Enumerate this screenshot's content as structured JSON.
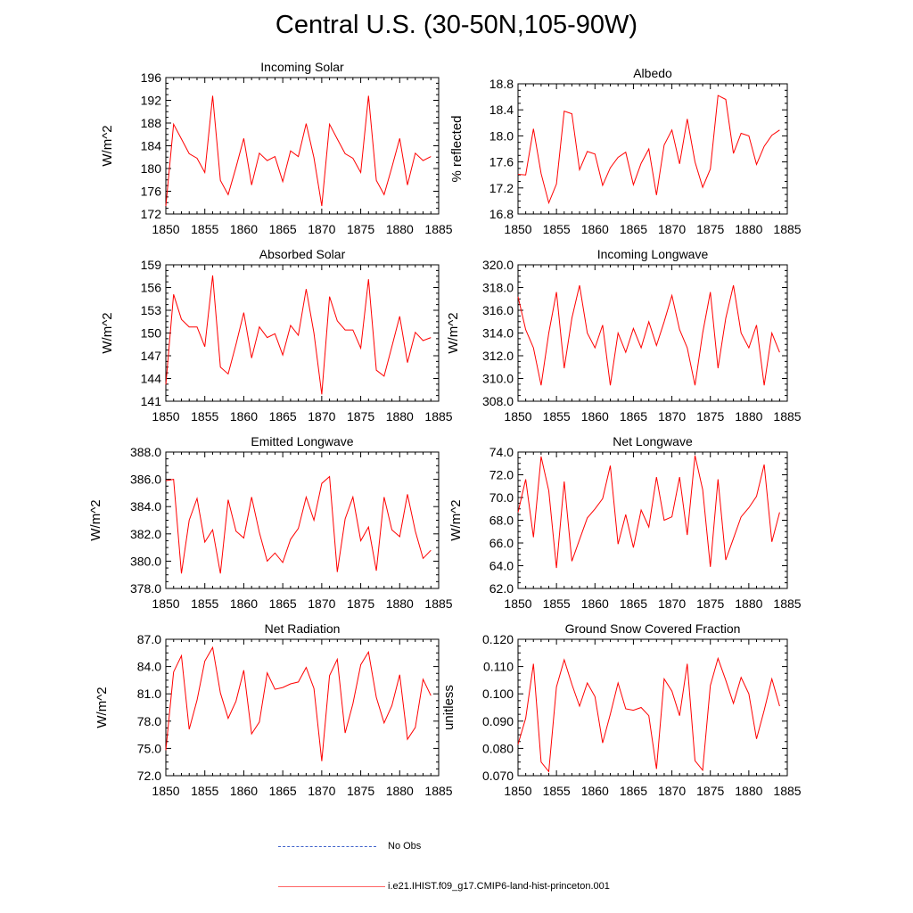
{
  "title": "Central U.S. (30-50N,105-90W)",
  "series_color": "#ff0000",
  "obs_color": "#4466cc",
  "legend": {
    "obs_label": "No Obs",
    "model_label": "i.e21.IHIST.f09_g17.CMIP6-land-hist-princeton.001"
  },
  "chart_data": [
    {
      "type": "line",
      "title": "Incoming Solar",
      "ylabel": "W/m^2",
      "xlim": [
        1850,
        1885
      ],
      "ylim": [
        172,
        196
      ],
      "yticks": [
        "172",
        "176",
        "180",
        "184",
        "188",
        "192",
        "196"
      ],
      "xticks": [
        "1850",
        "1855",
        "1860",
        "1865",
        "1870",
        "1875",
        "1880",
        "1885"
      ],
      "x": [
        1850,
        1851,
        1852,
        1853,
        1854,
        1855,
        1856,
        1857,
        1858,
        1859,
        1860,
        1861,
        1862,
        1863,
        1864,
        1865,
        1866,
        1867,
        1868,
        1869,
        1870,
        1871,
        1872,
        1873,
        1874,
        1875,
        1876,
        1877,
        1878,
        1879,
        1880,
        1881,
        1882,
        1883,
        1884
      ],
      "series": [
        {
          "values": [
            173.4,
            187.8,
            185.2,
            182.6,
            181.8,
            179.3,
            192.8,
            177.9,
            175.4,
            180.2,
            185.3,
            177.1,
            182.7,
            181.4,
            182.1,
            177.7,
            183.1,
            182.1,
            187.9,
            181.9,
            173.4,
            187.8,
            185.2,
            182.6,
            181.8,
            179.3,
            192.8,
            177.9,
            175.4,
            180.2,
            185.3,
            177.1,
            182.7,
            181.4,
            182.1
          ]
        }
      ]
    },
    {
      "type": "line",
      "title": "Albedo",
      "ylabel": "% reflected",
      "xlim": [
        1850,
        1885
      ],
      "ylim": [
        16.8,
        18.8
      ],
      "yticks": [
        "16.8",
        "17.2",
        "17.6",
        "18.0",
        "18.4",
        "18.8"
      ],
      "xticks": [
        "1850",
        "1855",
        "1860",
        "1865",
        "1870",
        "1875",
        "1880",
        "1885"
      ],
      "x": [
        1850,
        1851,
        1852,
        1853,
        1854,
        1855,
        1856,
        1857,
        1858,
        1859,
        1860,
        1861,
        1862,
        1863,
        1864,
        1865,
        1866,
        1867,
        1868,
        1869,
        1870,
        1871,
        1872,
        1873,
        1874,
        1875,
        1876,
        1877,
        1878,
        1879,
        1880,
        1881,
        1882,
        1883,
        1884
      ],
      "series": [
        {
          "values": [
            17.41,
            17.4,
            18.11,
            17.42,
            16.97,
            17.26,
            18.38,
            18.34,
            17.48,
            17.76,
            17.72,
            17.24,
            17.51,
            17.67,
            17.75,
            17.25,
            17.58,
            17.8,
            17.09,
            17.86,
            18.09,
            17.57,
            18.26,
            17.6,
            17.21,
            17.49,
            18.62,
            18.56,
            17.73,
            18.04,
            18.0,
            17.56,
            17.84,
            18.01,
            18.09
          ]
        }
      ]
    },
    {
      "type": "line",
      "title": "Absorbed Solar",
      "ylabel": "W/m^2",
      "xlim": [
        1850,
        1885
      ],
      "ylim": [
        141,
        159
      ],
      "yticks": [
        "141",
        "144",
        "147",
        "150",
        "153",
        "156",
        "159"
      ],
      "xticks": [
        "1850",
        "1855",
        "1860",
        "1865",
        "1870",
        "1875",
        "1880",
        "1885"
      ],
      "x": [
        1850,
        1851,
        1852,
        1853,
        1854,
        1855,
        1856,
        1857,
        1858,
        1859,
        1860,
        1861,
        1862,
        1863,
        1864,
        1865,
        1866,
        1867,
        1868,
        1869,
        1870,
        1871,
        1872,
        1873,
        1874,
        1875,
        1876,
        1877,
        1878,
        1879,
        1880,
        1881,
        1882,
        1883,
        1884
      ],
      "series": [
        {
          "values": [
            143.2,
            155.1,
            151.8,
            150.8,
            150.8,
            148.2,
            157.6,
            145.5,
            144.6,
            148.5,
            152.7,
            146.7,
            150.8,
            149.4,
            149.9,
            147.1,
            151.0,
            149.7,
            155.8,
            150.0,
            141.9,
            154.8,
            151.6,
            150.4,
            150.4,
            148.0,
            157.1,
            145.1,
            144.3,
            148.2,
            152.2,
            146.1,
            150.1,
            149.0,
            149.4
          ]
        }
      ]
    },
    {
      "type": "line",
      "title": "Incoming Longwave",
      "ylabel": "W/m^2",
      "xlim": [
        1850,
        1885
      ],
      "ylim": [
        308.0,
        320.0
      ],
      "yticks": [
        "308.0",
        "310.0",
        "312.0",
        "314.0",
        "316.0",
        "318.0",
        "320.0"
      ],
      "xticks": [
        "1850",
        "1855",
        "1860",
        "1865",
        "1870",
        "1875",
        "1880",
        "1885"
      ],
      "x": [
        1850,
        1851,
        1852,
        1853,
        1854,
        1855,
        1856,
        1857,
        1858,
        1859,
        1860,
        1861,
        1862,
        1863,
        1864,
        1865,
        1866,
        1867,
        1868,
        1869,
        1870,
        1871,
        1872,
        1873,
        1874,
        1875,
        1876,
        1877,
        1878,
        1879,
        1880,
        1881,
        1882,
        1883,
        1884
      ],
      "series": [
        {
          "values": [
            317.2,
            314.3,
            312.7,
            309.4,
            314.0,
            317.6,
            310.9,
            315.3,
            318.2,
            314.0,
            312.7,
            314.7,
            309.4,
            314.0,
            312.3,
            314.4,
            312.7,
            315.0,
            312.9,
            315.0,
            317.3,
            314.3,
            312.7,
            309.4,
            314.0,
            317.6,
            310.9,
            315.3,
            318.2,
            314.0,
            312.7,
            314.7,
            309.4,
            314.0,
            312.3
          ]
        }
      ]
    },
    {
      "type": "line",
      "title": "Emitted Longwave",
      "ylabel": "W/m^2",
      "xlim": [
        1850,
        1885
      ],
      "ylim": [
        378.0,
        388.0
      ],
      "yticks": [
        "378.0",
        "380.0",
        "382.0",
        "384.0",
        "386.0",
        "388.0"
      ],
      "xticks": [
        "1850",
        "1855",
        "1860",
        "1865",
        "1870",
        "1875",
        "1880",
        "1885"
      ],
      "x": [
        1850,
        1851,
        1852,
        1853,
        1854,
        1855,
        1856,
        1857,
        1858,
        1859,
        1860,
        1861,
        1862,
        1863,
        1864,
        1865,
        1866,
        1867,
        1868,
        1869,
        1870,
        1871,
        1872,
        1873,
        1874,
        1875,
        1876,
        1877,
        1878,
        1879,
        1880,
        1881,
        1882,
        1883,
        1884
      ],
      "series": [
        {
          "values": [
            385.9,
            386.0,
            379.1,
            383.0,
            384.6,
            381.4,
            382.3,
            379.1,
            384.5,
            382.2,
            381.7,
            384.7,
            382.1,
            380.0,
            380.6,
            379.9,
            381.6,
            382.4,
            384.7,
            383.0,
            385.7,
            386.2,
            379.2,
            383.1,
            384.7,
            381.5,
            382.5,
            379.3,
            384.7,
            382.3,
            381.8,
            384.9,
            382.2,
            380.2,
            380.8
          ]
        }
      ]
    },
    {
      "type": "line",
      "title": "Net Longwave",
      "ylabel": "W/m^2",
      "xlim": [
        1850,
        1885
      ],
      "ylim": [
        62.0,
        74.0
      ],
      "yticks": [
        "62.0",
        "64.0",
        "66.0",
        "68.0",
        "70.0",
        "72.0",
        "74.0"
      ],
      "xticks": [
        "1850",
        "1855",
        "1860",
        "1865",
        "1870",
        "1875",
        "1880",
        "1885"
      ],
      "x": [
        1850,
        1851,
        1852,
        1853,
        1854,
        1855,
        1856,
        1857,
        1858,
        1859,
        1860,
        1861,
        1862,
        1863,
        1864,
        1865,
        1866,
        1867,
        1868,
        1869,
        1870,
        1871,
        1872,
        1873,
        1874,
        1875,
        1876,
        1877,
        1878,
        1879,
        1880,
        1881,
        1882,
        1883,
        1884
      ],
      "series": [
        {
          "values": [
            68.7,
            71.6,
            66.5,
            73.6,
            70.6,
            63.8,
            71.4,
            64.4,
            66.3,
            68.2,
            69.0,
            69.9,
            72.8,
            65.9,
            68.5,
            65.6,
            68.9,
            67.4,
            71.8,
            68.0,
            68.3,
            71.8,
            66.7,
            73.7,
            70.7,
            63.9,
            71.6,
            64.5,
            66.4,
            68.3,
            69.1,
            70.1,
            72.9,
            66.1,
            68.7
          ]
        }
      ]
    },
    {
      "type": "line",
      "title": "Net Radiation",
      "ylabel": "W/m^2",
      "xlim": [
        1850,
        1885
      ],
      "ylim": [
        72.0,
        87.0
      ],
      "yticks": [
        "72.0",
        "75.0",
        "78.0",
        "81.0",
        "84.0",
        "87.0"
      ],
      "xticks": [
        "1850",
        "1855",
        "1860",
        "1865",
        "1870",
        "1875",
        "1880",
        "1885"
      ],
      "x": [
        1850,
        1851,
        1852,
        1853,
        1854,
        1855,
        1856,
        1857,
        1858,
        1859,
        1860,
        1861,
        1862,
        1863,
        1864,
        1865,
        1866,
        1867,
        1868,
        1869,
        1870,
        1871,
        1872,
        1873,
        1874,
        1875,
        1876,
        1877,
        1878,
        1879,
        1880,
        1881,
        1882,
        1883,
        1884
      ],
      "series": [
        {
          "values": [
            74.8,
            83.4,
            85.2,
            77.1,
            80.3,
            84.6,
            86.1,
            81.1,
            78.3,
            80.2,
            83.6,
            76.6,
            77.9,
            83.3,
            81.5,
            81.7,
            82.1,
            82.3,
            83.9,
            81.6,
            73.6,
            83.0,
            84.8,
            76.7,
            79.9,
            84.2,
            85.6,
            80.6,
            77.8,
            79.7,
            83.1,
            76.0,
            77.3,
            82.6,
            80.8
          ]
        }
      ]
    },
    {
      "type": "line",
      "title": "Ground Snow Covered Fraction",
      "ylabel": "unitless",
      "xlim": [
        1850,
        1885
      ],
      "ylim": [
        0.07,
        0.12
      ],
      "yticks": [
        "0.070",
        "0.080",
        "0.090",
        "0.100",
        "0.110",
        "0.120"
      ],
      "xticks": [
        "1850",
        "1855",
        "1860",
        "1865",
        "1870",
        "1875",
        "1880",
        "1885"
      ],
      "x": [
        1850,
        1851,
        1852,
        1853,
        1854,
        1855,
        1856,
        1857,
        1858,
        1859,
        1860,
        1861,
        1862,
        1863,
        1864,
        1865,
        1866,
        1867,
        1868,
        1869,
        1870,
        1871,
        1872,
        1873,
        1874,
        1875,
        1876,
        1877,
        1878,
        1879,
        1880,
        1881,
        1882,
        1883,
        1884
      ],
      "series": [
        {
          "values": [
            0.0815,
            0.091,
            0.111,
            0.075,
            0.0715,
            0.1025,
            0.1125,
            0.1035,
            0.0955,
            0.104,
            0.099,
            0.082,
            0.0925,
            0.104,
            0.0945,
            0.094,
            0.095,
            0.092,
            0.0725,
            0.1055,
            0.101,
            0.092,
            0.111,
            0.0755,
            0.072,
            0.103,
            0.113,
            0.105,
            0.0965,
            0.106,
            0.1,
            0.0835,
            0.094,
            0.1055,
            0.0955
          ]
        }
      ]
    }
  ]
}
